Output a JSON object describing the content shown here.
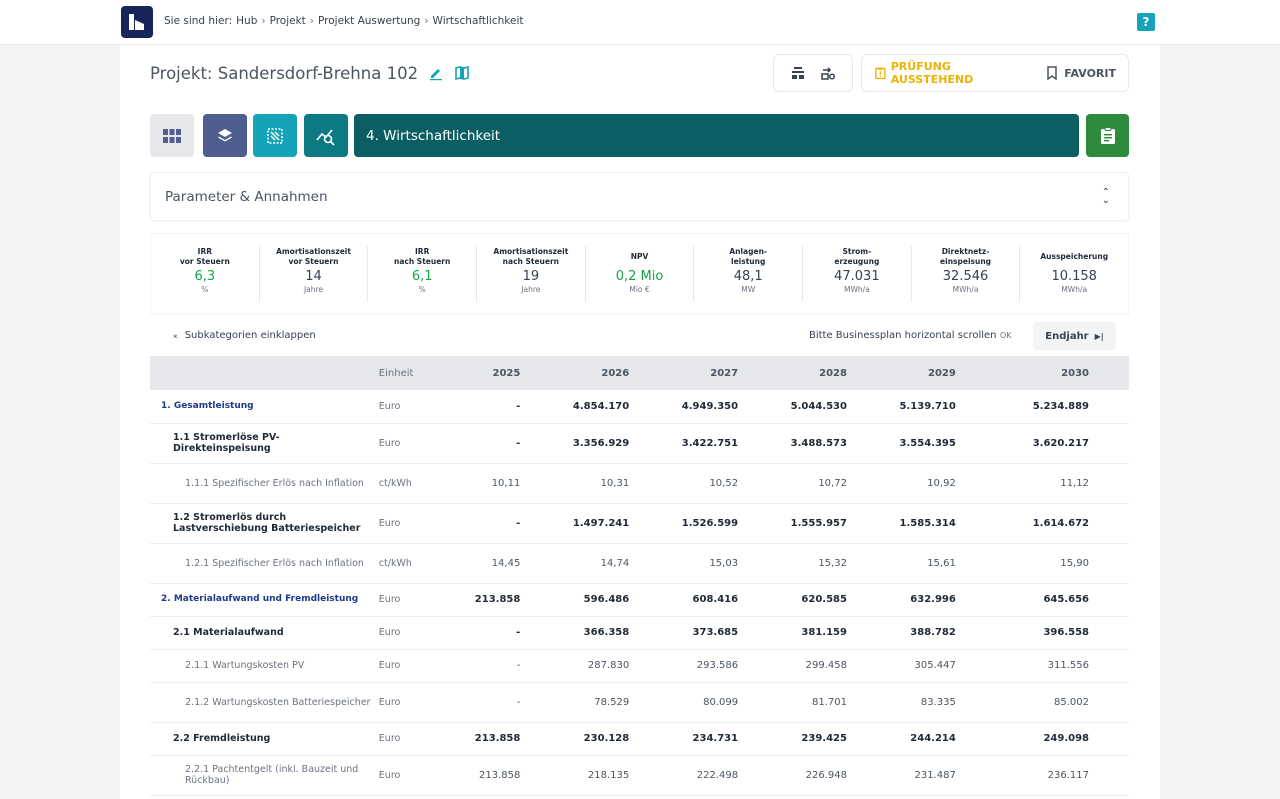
{
  "breadcrumb": {
    "prefix": "Sie sind hier:",
    "items": [
      "Hub",
      "Projekt",
      "Projekt Auswertung",
      "Wirtschaftlichkeit"
    ],
    "separator": "›"
  },
  "help": {
    "label": "?"
  },
  "project": {
    "title": "Projekt: Sandersdorf-Brehna 102"
  },
  "status": {
    "pruefung": "PRÜFUNG AUSSTEHEND",
    "favorit": "FAVORIT"
  },
  "step": {
    "label": "4. Wirtschaftlichkeit"
  },
  "params": {
    "title": "Parameter & Annahmen"
  },
  "kpis": [
    {
      "label": "IRR\nvor Steuern",
      "value": "6,3",
      "unit": "%",
      "highlight": true
    },
    {
      "label": "Amortisationszeit\nvor Steuern",
      "value": "14",
      "unit": "Jahre",
      "highlight": false
    },
    {
      "label": "IRR\nnach Steuern",
      "value": "6,1",
      "unit": "%",
      "highlight": true
    },
    {
      "label": "Amortisationszeit\nnach Steuern",
      "value": "19",
      "unit": "Jahre",
      "highlight": false
    },
    {
      "label": "NPV",
      "value": "0,2 Mio",
      "unit": "Mio €",
      "highlight": true
    },
    {
      "label": "Anlagen-\nleistung",
      "value": "48,1",
      "unit": "MW",
      "highlight": false
    },
    {
      "label": "Strom-\nerzeugung",
      "value": "47.031",
      "unit": "MWh/a",
      "highlight": false
    },
    {
      "label": "Direktnetz-\neinspeisung",
      "value": "32.546",
      "unit": "MWh/a",
      "highlight": false
    },
    {
      "label": "Ausspeicherung",
      "value": "10.158",
      "unit": "MWh/a",
      "highlight": false
    }
  ],
  "toolbar": {
    "collapse": "Subkategorien einklappen",
    "hint": "Bitte Businessplan horizontal scrollen",
    "ok": "OK",
    "endjahr": "Endjahr"
  },
  "table": {
    "unit_header": "Einheit",
    "years": [
      "2025",
      "2026",
      "2027",
      "2028",
      "2029",
      "2030"
    ],
    "rows": [
      {
        "level": 1,
        "name": "1. Gesamtleistung",
        "unit": "Euro",
        "values": [
          "-",
          "4.854.170",
          "4.949.350",
          "5.044.530",
          "5.139.710",
          "5.234.889"
        ]
      },
      {
        "level": 2,
        "name": "1.1 Stromerlöse PV-Direkteinspeisung",
        "unit": "Euro",
        "values": [
          "-",
          "3.356.929",
          "3.422.751",
          "3.488.573",
          "3.554.395",
          "3.620.217"
        ]
      },
      {
        "level": 3,
        "name": "1.1.1 Spezifischer Erlös nach Inflation",
        "unit": "ct/kWh",
        "values": [
          "10,11",
          "10,31",
          "10,52",
          "10,72",
          "10,92",
          "11,12"
        ]
      },
      {
        "level": 2,
        "name": "1.2 Stromerlös durch Lastverschiebung Batteriespeicher",
        "unit": "Euro",
        "values": [
          "-",
          "1.497.241",
          "1.526.599",
          "1.555.957",
          "1.585.314",
          "1.614.672"
        ]
      },
      {
        "level": 3,
        "name": "1.2.1 Spezifischer Erlös nach Inflation",
        "unit": "ct/kWh",
        "values": [
          "14,45",
          "14,74",
          "15,03",
          "15,32",
          "15,61",
          "15,90"
        ]
      },
      {
        "level": 1,
        "name": "2. Materialaufwand und Fremdleistung",
        "unit": "Euro",
        "values": [
          "213.858",
          "596.486",
          "608.416",
          "620.585",
          "632.996",
          "645.656"
        ]
      },
      {
        "level": 2,
        "name": "2.1 Materialaufwand",
        "unit": "Euro",
        "values": [
          "-",
          "366.358",
          "373.685",
          "381.159",
          "388.782",
          "396.558"
        ]
      },
      {
        "level": 3,
        "name": "2.1.1 Wartungskosten PV",
        "unit": "Euro",
        "values": [
          "-",
          "287.830",
          "293.586",
          "299.458",
          "305.447",
          "311.556"
        ]
      },
      {
        "level": 3,
        "name": "2.1.2 Wartungskosten Batteriespeicher",
        "unit": "Euro",
        "values": [
          "-",
          "78.529",
          "80.099",
          "81.701",
          "83.335",
          "85.002"
        ]
      },
      {
        "level": 2,
        "name": "2.2 Fremdleistung",
        "unit": "Euro",
        "values": [
          "213.858",
          "230.128",
          "234.731",
          "239.425",
          "244.214",
          "249.098"
        ]
      },
      {
        "level": 3,
        "name": "2.2.1 Pachtentgelt (inkl. Bauzeit und Rückbau)",
        "unit": "Euro",
        "values": [
          "213.858",
          "218.135",
          "222.498",
          "226.948",
          "231.487",
          "236.117"
        ]
      }
    ]
  },
  "colors": {
    "brand": "#17255a",
    "step_bar": "#0b5f63",
    "teal": "#14a3b8",
    "green": "#2e8b3c",
    "warning": "#eab308",
    "nav_slate": "#4f5d8f"
  }
}
